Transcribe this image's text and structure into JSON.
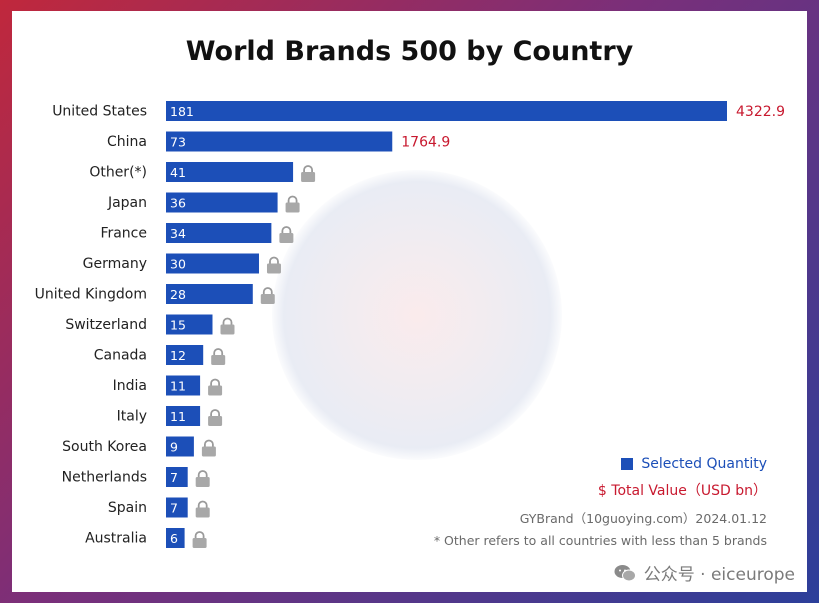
{
  "chart_data": {
    "type": "bar",
    "orientation": "horizontal",
    "title": "World Brands 500 by Country",
    "categories": [
      "United States",
      "China",
      "Other(*)",
      "Japan",
      "France",
      "Germany",
      "United Kingdom",
      "Switzerland",
      "Canada",
      "India",
      "Italy",
      "South Korea",
      "Netherlands",
      "Spain",
      "Australia"
    ],
    "series": [
      {
        "name": "Selected Quantity",
        "values": [
          181,
          73,
          41,
          36,
          34,
          30,
          28,
          15,
          12,
          11,
          11,
          9,
          7,
          7,
          6
        ]
      }
    ],
    "total_value_labels": [
      "4322.9",
      "1764.9"
    ],
    "xlim": [
      0,
      181
    ],
    "grid": false,
    "legend": {
      "position": "bottom-right",
      "quantity_label": "Selected Quantity",
      "value_label": "$ Total Value（USD bn）"
    },
    "colors": {
      "bar": "#1c4fb8",
      "value_text": "#c8192f"
    }
  },
  "source": "GYBrand（10guoying.com）2024.01.12",
  "footnote": "* Other refers to all countries with less than 5 brands",
  "wechat_account": "公众号 · eiceurope",
  "icons": [
    "lock-icon",
    "wechat-icon"
  ]
}
